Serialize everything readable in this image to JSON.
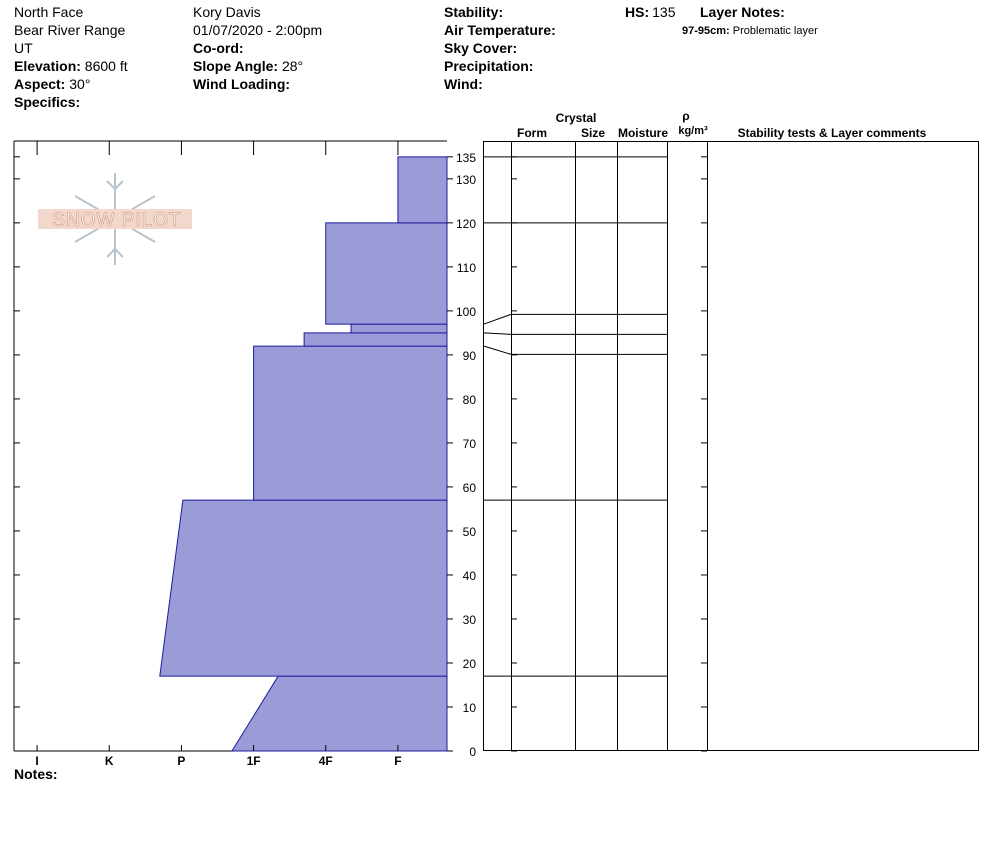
{
  "header": {
    "col1": [
      "North Face",
      "Bear River Range",
      "UT"
    ],
    "col1_fields": [
      {
        "label": "Elevation:",
        "value": "8600 ft"
      },
      {
        "label": "Aspect:",
        "value": "30°"
      },
      {
        "label": "Specifics:"
      }
    ],
    "col2": [
      "Kory Davis",
      "01/07/2020 - 2:00pm"
    ],
    "col2_fields": [
      {
        "label": "Co-ord:"
      },
      {
        "label": "Slope Angle:",
        "value": "28°"
      },
      {
        "label": "Wind Loading:"
      }
    ],
    "col3_fields": [
      {
        "label": "Stability:"
      },
      {
        "label": "Air Temperature:"
      },
      {
        "label": "Sky Cover:"
      },
      {
        "label": "Precipitation:"
      },
      {
        "label": "Wind:"
      }
    ],
    "hs": {
      "label": "HS:",
      "value": 135
    },
    "layer_notes": {
      "label": "Layer Notes:",
      "depth": "97-95cm:",
      "text": "Problematic layer"
    },
    "notes_label": "Notes:",
    "logo": "SNOW PILOT"
  },
  "table_header": {
    "crystal": "Crystal",
    "form": "Form",
    "size": "Size",
    "moisture": "Moisture",
    "density": "ρ",
    "density_unit": "kg/m³",
    "comments": "Stability tests & Layer comments"
  },
  "chart_data": {
    "type": "snowprofile",
    "fill": "#9b9bd8",
    "stroke": "#1c1c9c",
    "layers": [
      {
        "bottom": 0,
        "top": 17,
        "hardness_bottom": 3.3,
        "hardness_top": 2.66
      },
      {
        "bottom": 17,
        "top": 57,
        "hardness_bottom": 4.3,
        "hardness_top": 3.98
      },
      {
        "bottom": 57,
        "top": 92,
        "hardness_bottom": 3,
        "hardness_top": 3
      },
      {
        "bottom": 92,
        "top": 95,
        "hardness_bottom": 2.3,
        "hardness_top": 2.3
      },
      {
        "bottom": 95,
        "top": 97,
        "hardness_bottom": 1.65,
        "hardness_top": 1.65
      },
      {
        "bottom": 97,
        "top": 120,
        "hardness_bottom": 2,
        "hardness_top": 2
      },
      {
        "bottom": 120,
        "top": 135,
        "hardness_bottom": 1,
        "hardness_top": 1
      }
    ],
    "xlim": [
      6.32,
      0.32
    ],
    "xticks": [
      {
        "value": 6,
        "label": "I"
      },
      {
        "value": 5,
        "label": "K"
      },
      {
        "value": 4,
        "label": "P"
      },
      {
        "value": 3,
        "label": "1F"
      },
      {
        "value": 2,
        "label": "4F"
      },
      {
        "value": 1,
        "label": "F"
      }
    ],
    "ylim": [
      0,
      138.6
    ],
    "yticks": [
      0,
      10,
      20,
      30,
      40,
      50,
      60,
      70,
      80,
      90,
      100,
      110,
      120,
      130,
      135
    ]
  }
}
